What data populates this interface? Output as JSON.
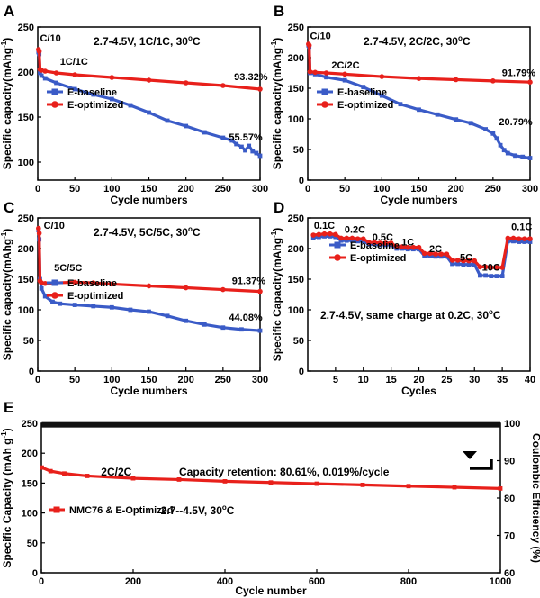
{
  "chart_data": [
    {
      "panel": "A",
      "type": "line",
      "xlabel": "Cycle numbers",
      "ylabel": "Specific capacity(mAhg",
      "ylabel_sup": "-1",
      "ylabel_close": ")",
      "xlim": [
        0,
        300
      ],
      "ylim": [
        80,
        250
      ],
      "xticks": [
        0,
        50,
        100,
        150,
        200,
        250,
        300
      ],
      "yticks": [
        100,
        150,
        200,
        250
      ],
      "condition": "2.7-4.5V, 1C/1C, 30",
      "condition_unit": "oC",
      "legend": "inside-center-left",
      "annotations": [
        {
          "text": "C/10",
          "x": 3,
          "y": 234
        },
        {
          "text": "1C/1C",
          "x": 30,
          "y": 208
        },
        {
          "text": "93.32%",
          "x": 265,
          "y": 191
        },
        {
          "text": "55.57%",
          "x": 258,
          "y": 124
        }
      ],
      "series": [
        {
          "name": "E-baseline",
          "color": "#3a5bc7",
          "marker": "square",
          "x": [
            1,
            2,
            3,
            5,
            10,
            25,
            50,
            75,
            100,
            125,
            150,
            175,
            200,
            225,
            250,
            262,
            268,
            275,
            280,
            285,
            290,
            295,
            300
          ],
          "y": [
            222,
            220,
            199,
            196,
            193,
            188,
            181,
            175,
            170,
            163,
            155,
            146,
            140,
            133,
            127,
            124,
            120,
            117,
            113,
            118,
            112,
            110,
            107
          ]
        },
        {
          "name": "E-optimized",
          "color": "#e8201b",
          "marker": "circle",
          "x": [
            1,
            2,
            3,
            5,
            10,
            25,
            50,
            100,
            150,
            200,
            250,
            300
          ],
          "y": [
            225,
            223,
            203,
            202,
            201,
            199,
            197,
            194,
            191,
            188,
            185,
            181
          ]
        }
      ]
    },
    {
      "panel": "B",
      "type": "line",
      "xlabel": "Cycle numbers",
      "ylabel": "Specific capacity(mAhg",
      "ylabel_sup": "-1",
      "ylabel_close": ")",
      "xlim": [
        0,
        300
      ],
      "ylim": [
        0,
        250
      ],
      "xticks": [
        0,
        50,
        100,
        150,
        200,
        250,
        300
      ],
      "yticks": [
        0,
        50,
        100,
        150,
        200,
        250
      ],
      "condition": "2.7-4.5V, 2C/2C, 30",
      "condition_unit": "oC",
      "legend": "inside-center-left",
      "annotations": [
        {
          "text": "C/10",
          "x": 3,
          "y": 230
        },
        {
          "text": "2C/2C",
          "x": 32,
          "y": 182
        },
        {
          "text": "91.79%",
          "x": 262,
          "y": 170
        },
        {
          "text": "20.79%",
          "x": 258,
          "y": 90
        }
      ],
      "series": [
        {
          "name": "E-baseline",
          "color": "#3a5bc7",
          "marker": "square",
          "x": [
            1,
            2,
            3,
            10,
            25,
            50,
            75,
            100,
            125,
            150,
            175,
            200,
            220,
            240,
            250,
            255,
            260,
            265,
            270,
            280,
            290,
            300
          ],
          "y": [
            220,
            218,
            175,
            173,
            168,
            163,
            152,
            138,
            124,
            115,
            107,
            99,
            93,
            83,
            76,
            68,
            57,
            49,
            44,
            40,
            38,
            36
          ]
        },
        {
          "name": "E-optimized",
          "color": "#e8201b",
          "marker": "circle",
          "x": [
            1,
            2,
            3,
            10,
            25,
            50,
            100,
            150,
            200,
            250,
            300
          ],
          "y": [
            222,
            220,
            177,
            176,
            175,
            173,
            169,
            166,
            164,
            162,
            160
          ]
        }
      ]
    },
    {
      "panel": "C",
      "type": "line",
      "xlabel": "Cycle numbers",
      "ylabel": "Specific capacity(mAhg",
      "ylabel_sup": "-1",
      "ylabel_close": ")",
      "xlim": [
        0,
        300
      ],
      "ylim": [
        0,
        250
      ],
      "xticks": [
        0,
        50,
        100,
        150,
        200,
        250,
        300
      ],
      "yticks": [
        0,
        50,
        100,
        150,
        200,
        250
      ],
      "condition": "2.7-4.5V, 5C/5C, 30",
      "condition_unit": "oC",
      "legend": "inside-center-left",
      "annotations": [
        {
          "text": "C/10",
          "x": 8,
          "y": 232
        },
        {
          "text": "5C/5C",
          "x": 22,
          "y": 163
        },
        {
          "text": "91.37%",
          "x": 262,
          "y": 142
        },
        {
          "text": "44.08%",
          "x": 258,
          "y": 82
        }
      ],
      "series": [
        {
          "name": "E-baseline",
          "color": "#3a5bc7",
          "marker": "square",
          "x": [
            1,
            2,
            3,
            5,
            10,
            20,
            30,
            50,
            75,
            100,
            125,
            150,
            175,
            200,
            225,
            250,
            275,
            300
          ],
          "y": [
            230,
            215,
            150,
            135,
            122,
            113,
            110,
            108,
            106,
            104,
            100,
            97,
            90,
            82,
            76,
            71,
            68,
            66
          ]
        },
        {
          "name": "E-optimized",
          "color": "#e8201b",
          "marker": "circle",
          "x": [
            1,
            2,
            3,
            5,
            10,
            25,
            50,
            75,
            100,
            150,
            200,
            250,
            300
          ],
          "y": [
            233,
            225,
            147,
            144,
            143,
            144,
            145,
            144,
            142,
            139,
            136,
            133,
            130
          ]
        }
      ]
    },
    {
      "panel": "D",
      "type": "line",
      "xlabel": "Cycles",
      "ylabel": "Specific Capacity(mAhg",
      "ylabel_sup": "-1",
      "ylabel_close": ")",
      "xlim": [
        0,
        40
      ],
      "ylim": [
        0,
        250
      ],
      "xticks": [
        5,
        10,
        15,
        20,
        25,
        30,
        35,
        40
      ],
      "yticks": [
        0,
        50,
        100,
        150,
        200,
        250
      ],
      "condition": "2.7-4.5V, same charge at 0.2C, 30",
      "condition_unit": "oC",
      "legend": "inside-upper-left",
      "rate_labels": [
        {
          "text": "0.1C",
          "x": 3,
          "y": 232
        },
        {
          "text": "0.2C",
          "x": 8.5,
          "y": 226
        },
        {
          "text": "0.5C",
          "x": 13.5,
          "y": 213
        },
        {
          "text": "1C",
          "x": 18,
          "y": 205
        },
        {
          "text": "2C",
          "x": 23,
          "y": 194
        },
        {
          "text": "5C",
          "x": 28.5,
          "y": 180
        },
        {
          "text": "10C",
          "x": 33,
          "y": 164
        },
        {
          "text": "0.1C",
          "x": 38.5,
          "y": 230
        }
      ],
      "series": [
        {
          "name": "E-baseline",
          "color": "#3a5bc7",
          "marker": "square",
          "x": [
            1,
            2,
            3,
            4,
            5,
            6,
            7,
            8,
            9,
            10,
            11,
            12,
            13,
            14,
            15,
            16,
            17,
            18,
            19,
            20,
            21,
            22,
            23,
            24,
            25,
            26,
            27,
            28,
            29,
            30,
            31,
            32,
            33,
            34,
            35,
            36,
            37,
            38,
            39,
            40
          ],
          "y": [
            218,
            219,
            220,
            220,
            219,
            213,
            213,
            213,
            212,
            212,
            207,
            207,
            206,
            206,
            206,
            200,
            200,
            199,
            199,
            199,
            188,
            188,
            187,
            187,
            187,
            175,
            175,
            174,
            174,
            174,
            156,
            156,
            155,
            155,
            155,
            212,
            212,
            211,
            211,
            211
          ]
        },
        {
          "name": "E-optimized",
          "color": "#e8201b",
          "marker": "circle",
          "x": [
            1,
            2,
            3,
            4,
            5,
            6,
            7,
            8,
            9,
            10,
            11,
            12,
            13,
            14,
            15,
            16,
            17,
            18,
            19,
            20,
            21,
            22,
            23,
            24,
            25,
            26,
            27,
            28,
            29,
            30,
            31,
            32,
            33,
            34,
            35,
            36,
            37,
            38,
            39,
            40
          ],
          "y": [
            222,
            223,
            224,
            224,
            223,
            217,
            217,
            217,
            216,
            216,
            210,
            210,
            209,
            209,
            209,
            203,
            203,
            202,
            202,
            202,
            192,
            192,
            191,
            191,
            191,
            181,
            181,
            180,
            180,
            180,
            170,
            170,
            169,
            169,
            169,
            217,
            217,
            216,
            216,
            216
          ]
        }
      ]
    },
    {
      "panel": "E",
      "type": "line",
      "xlabel": "Cycle number",
      "ylabel": "Specific Capacity (mAh g",
      "ylabel_sup": "-1",
      "ylabel_close": ")",
      "ylabel_right": "Coulombic Efficiency (%)",
      "xlim": [
        0,
        1000
      ],
      "ylim": [
        0,
        250
      ],
      "ylim_right": [
        60,
        100
      ],
      "xticks": [
        0,
        200,
        400,
        600,
        800,
        1000
      ],
      "yticks": [
        0,
        50,
        100,
        150,
        200,
        250
      ],
      "yticks_right": [
        60,
        70,
        80,
        90,
        100
      ],
      "legend": "inside-center-left",
      "annotations": [
        {
          "text": "2C/2C",
          "x": 130,
          "y": 163
        },
        {
          "text": "Capacity retention: 80.61%, 0.019%/cycle",
          "x": 300,
          "y": 163
        },
        {
          "text": "2.7--4.5V, 30",
          "x": 260,
          "y": 98,
          "unit": "oC"
        }
      ],
      "series": [
        {
          "name": "NMC76 & E-Optimized",
          "color": "#e8201b",
          "marker": "square",
          "x": [
            1,
            20,
            50,
            100,
            200,
            300,
            400,
            500,
            600,
            700,
            800,
            900,
            1000
          ],
          "y": [
            176,
            170,
            166,
            162,
            158,
            156,
            153,
            151,
            149,
            147,
            145,
            143,
            141
          ]
        },
        {
          "name": "Coulombic Efficiency",
          "axis": "right",
          "color": "#000000",
          "marker": "square",
          "x": [
            1,
            1000
          ],
          "y": [
            99.6,
            99.6
          ]
        }
      ]
    }
  ]
}
